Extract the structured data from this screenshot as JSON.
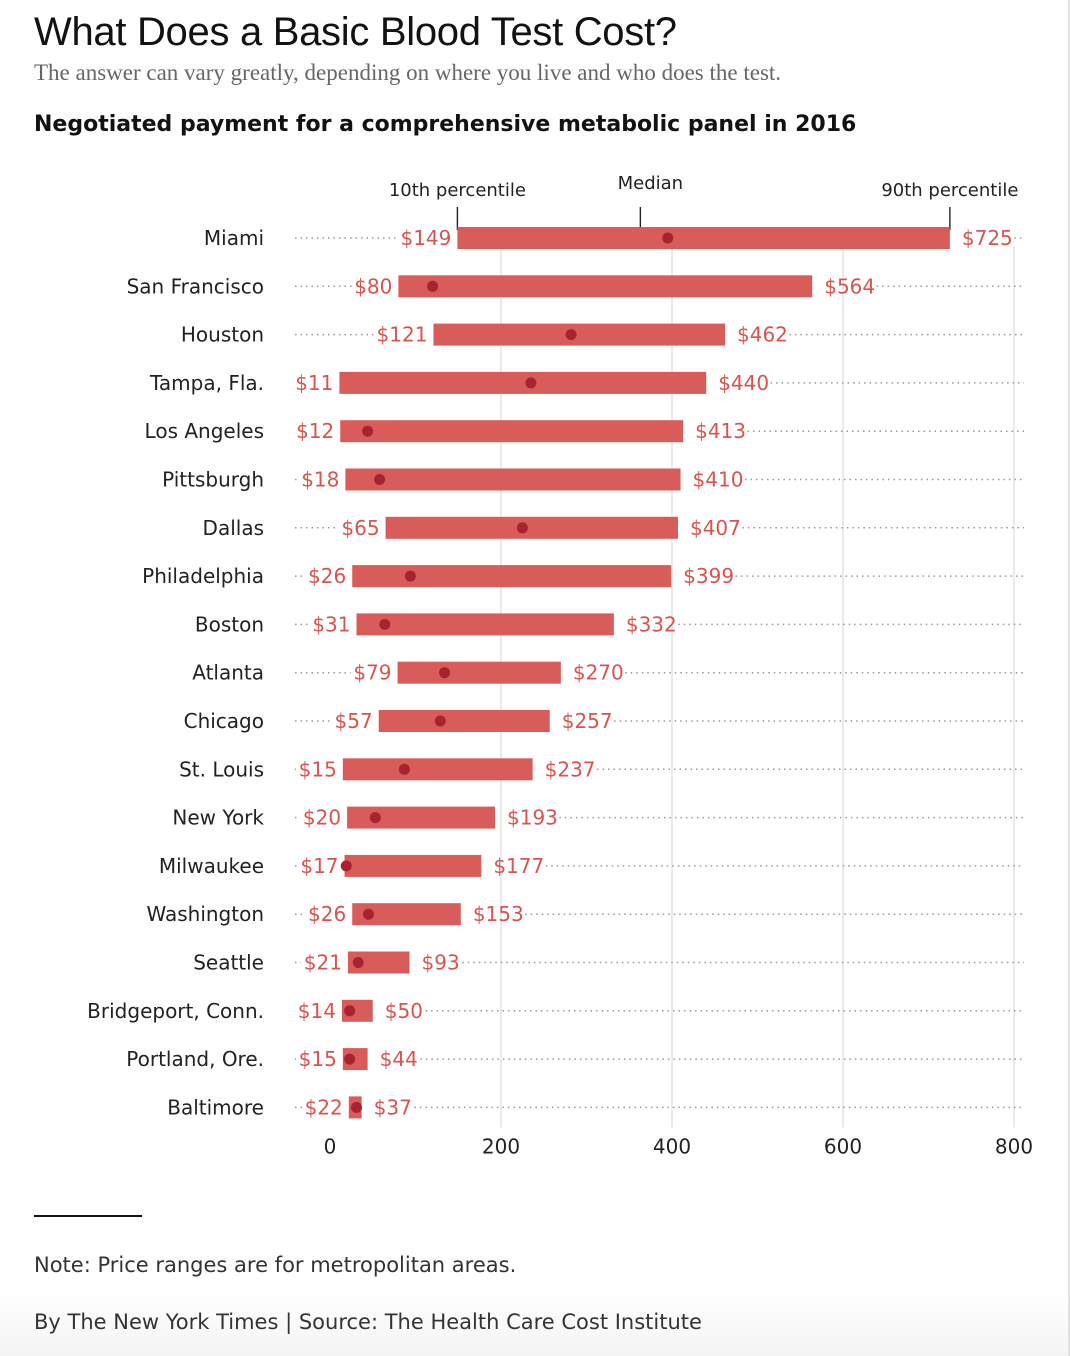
{
  "header": {
    "title": "What Does a Basic Blood Test Cost?",
    "subtitle": "The answer can vary greatly, depending on where you live and who does the test."
  },
  "chart_data": {
    "type": "range_bar",
    "title": "Negotiated payment for a comprehensive metabolic panel in 2016",
    "legend": {
      "low": "10th percentile",
      "median": "Median",
      "high": "90th percentile"
    },
    "xlim": [
      0,
      800
    ],
    "xticks": [
      0,
      200,
      400,
      600,
      800
    ],
    "xtick_labels": [
      "0",
      "200",
      "400",
      "600",
      "800"
    ],
    "series": [
      {
        "city": "Miami",
        "low": 149,
        "median": 395,
        "high": 725,
        "low_label": "$149",
        "high_label": "$725"
      },
      {
        "city": "San Francisco",
        "low": 80,
        "median": 120,
        "high": 564,
        "low_label": "$80",
        "high_label": "$564"
      },
      {
        "city": "Houston",
        "low": 121,
        "median": 282,
        "high": 462,
        "low_label": "$121",
        "high_label": "$462"
      },
      {
        "city": "Tampa, Fla.",
        "low": 11,
        "median": 235,
        "high": 440,
        "low_label": "$11",
        "high_label": "$440"
      },
      {
        "city": "Los Angeles",
        "low": 12,
        "median": 44,
        "high": 413,
        "low_label": "$12",
        "high_label": "$413"
      },
      {
        "city": "Pittsburgh",
        "low": 18,
        "median": 58,
        "high": 410,
        "low_label": "$18",
        "high_label": "$410"
      },
      {
        "city": "Dallas",
        "low": 65,
        "median": 225,
        "high": 407,
        "low_label": "$65",
        "high_label": "$407"
      },
      {
        "city": "Philadelphia",
        "low": 26,
        "median": 94,
        "high": 399,
        "low_label": "$26",
        "high_label": "$399"
      },
      {
        "city": "Boston",
        "low": 31,
        "median": 64,
        "high": 332,
        "low_label": "$31",
        "high_label": "$332"
      },
      {
        "city": "Atlanta",
        "low": 79,
        "median": 134,
        "high": 270,
        "low_label": "$79",
        "high_label": "$270"
      },
      {
        "city": "Chicago",
        "low": 57,
        "median": 129,
        "high": 257,
        "low_label": "$57",
        "high_label": "$257"
      },
      {
        "city": "St. Louis",
        "low": 15,
        "median": 87,
        "high": 237,
        "low_label": "$15",
        "high_label": "$237"
      },
      {
        "city": "New York",
        "low": 20,
        "median": 53,
        "high": 193,
        "low_label": "$20",
        "high_label": "$193"
      },
      {
        "city": "Milwaukee",
        "low": 17,
        "median": 19,
        "high": 177,
        "low_label": "$17",
        "high_label": "$177"
      },
      {
        "city": "Washington",
        "low": 26,
        "median": 45,
        "high": 153,
        "low_label": "$26",
        "high_label": "$153"
      },
      {
        "city": "Seattle",
        "low": 21,
        "median": 33,
        "high": 93,
        "low_label": "$21",
        "high_label": "$93"
      },
      {
        "city": "Bridgeport, Conn.",
        "low": 14,
        "median": 23,
        "high": 50,
        "low_label": "$14",
        "high_label": "$50"
      },
      {
        "city": "Portland, Ore.",
        "low": 15,
        "median": 23,
        "high": 44,
        "low_label": "$15",
        "high_label": "$44"
      },
      {
        "city": "Baltimore",
        "low": 22,
        "median": 31,
        "high": 37,
        "low_label": "$22",
        "high_label": "$37"
      }
    ],
    "colors": {
      "bar": "#d75c5a",
      "median_dot": "#a8232f",
      "value_label": "#d9534f",
      "grid": "#dcdcdc",
      "dots": "#999999"
    }
  },
  "footer": {
    "note": "Note: Price ranges are for metropolitan areas.",
    "credit": "By The New York Times | Source: The Health Care Cost Institute"
  }
}
